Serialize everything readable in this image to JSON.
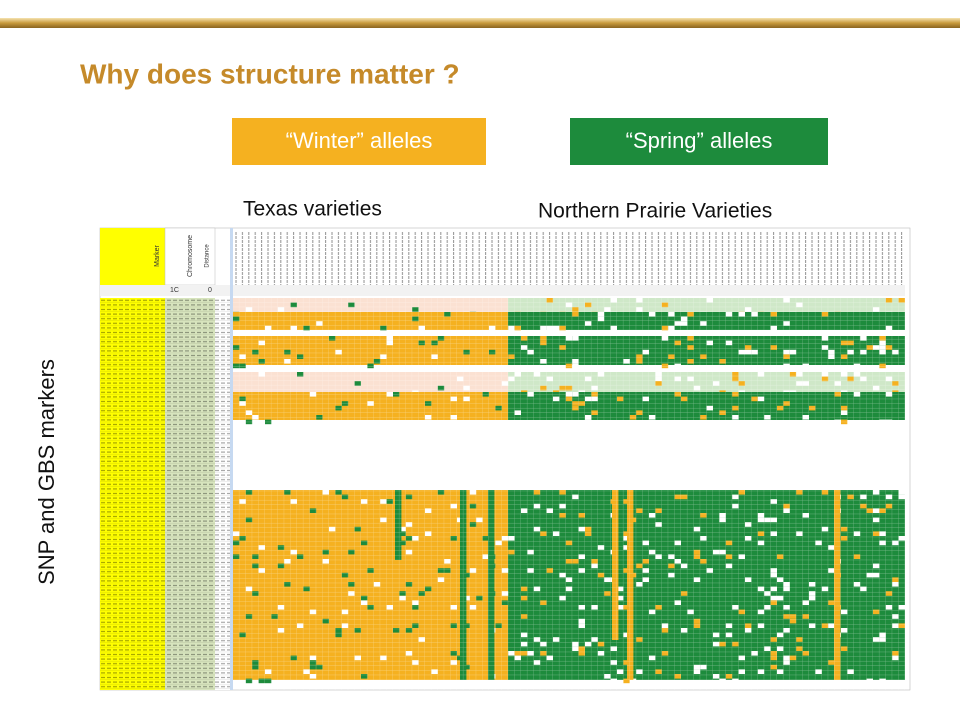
{
  "header": {
    "title": "Why does structure matter ?"
  },
  "legend": [
    {
      "label": "“Winter” alleles"
    },
    {
      "label": "“Spring” alleles"
    }
  ],
  "groups": [
    "Texas varieties",
    "Northern Prairie Varieties"
  ],
  "side_label": "SNP and GBS markers",
  "sheet": {
    "columns": [
      "Marker",
      "Chromosome",
      "Distance"
    ],
    "first_row": [
      "1C",
      "0"
    ]
  }
}
